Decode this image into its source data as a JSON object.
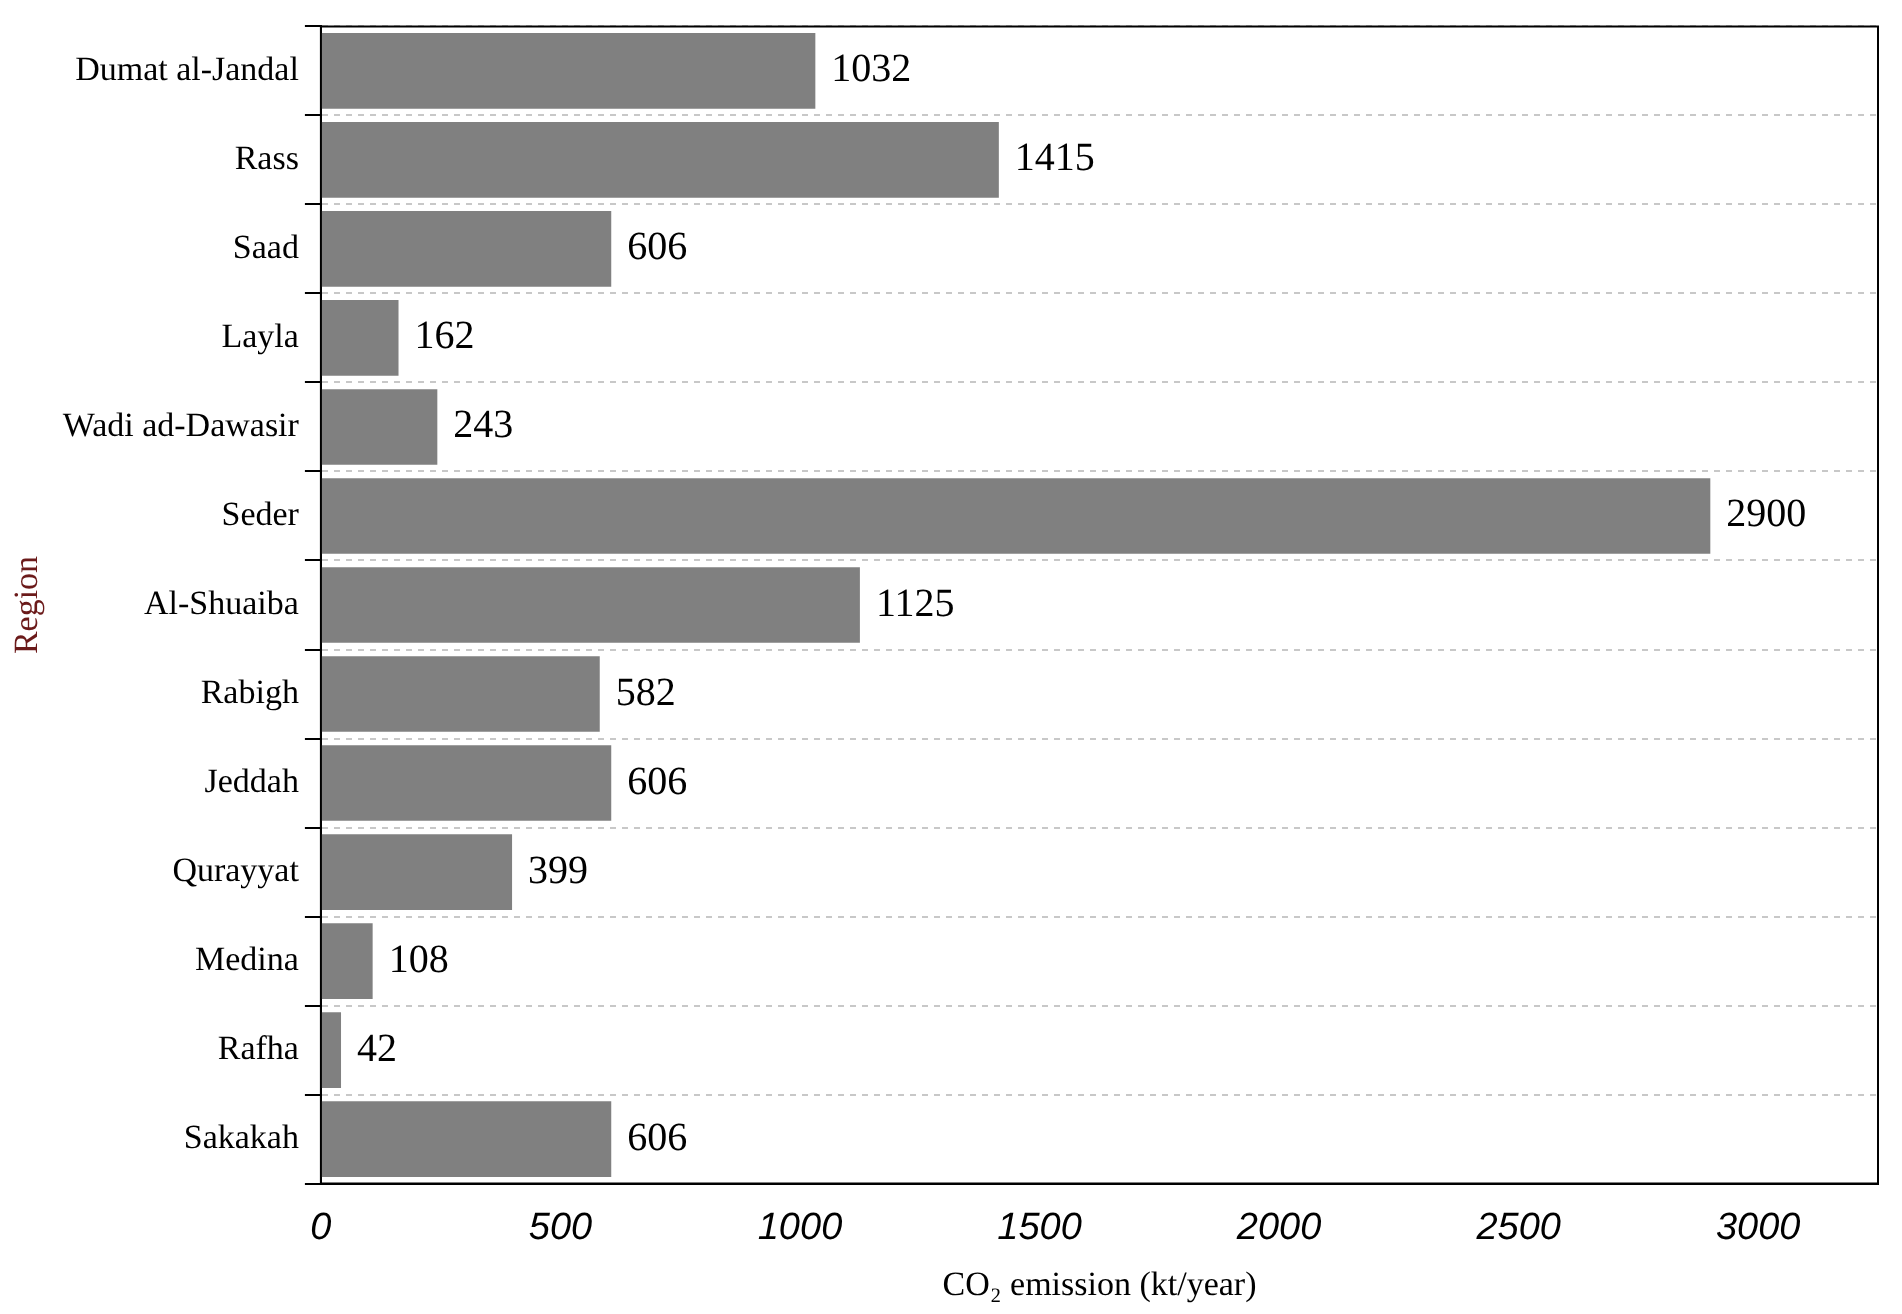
{
  "chart_data": {
    "type": "bar",
    "orientation": "horizontal",
    "xlabel": "CO₂ emission (kt/year)",
    "ylabel": "Region",
    "categories": [
      "Dumat al-Jandal",
      "Rass",
      "Saad",
      "Layla",
      "Wadi ad-Dawasir",
      "Seder",
      "Al-Shuaiba",
      "Rabigh",
      "Jeddah",
      "Qurayyat",
      "Medina",
      "Rafha",
      "Sakakah"
    ],
    "values": [
      1032,
      1415,
      606,
      162,
      243,
      2900,
      1125,
      582,
      606,
      399,
      108,
      42,
      606
    ],
    "color": "#808080",
    "xlim": [
      0,
      3250
    ],
    "xticks": [
      0,
      500,
      1000,
      1500,
      2000,
      2500,
      3000
    ],
    "grid": "y",
    "data_labels": true,
    "legend": false
  }
}
